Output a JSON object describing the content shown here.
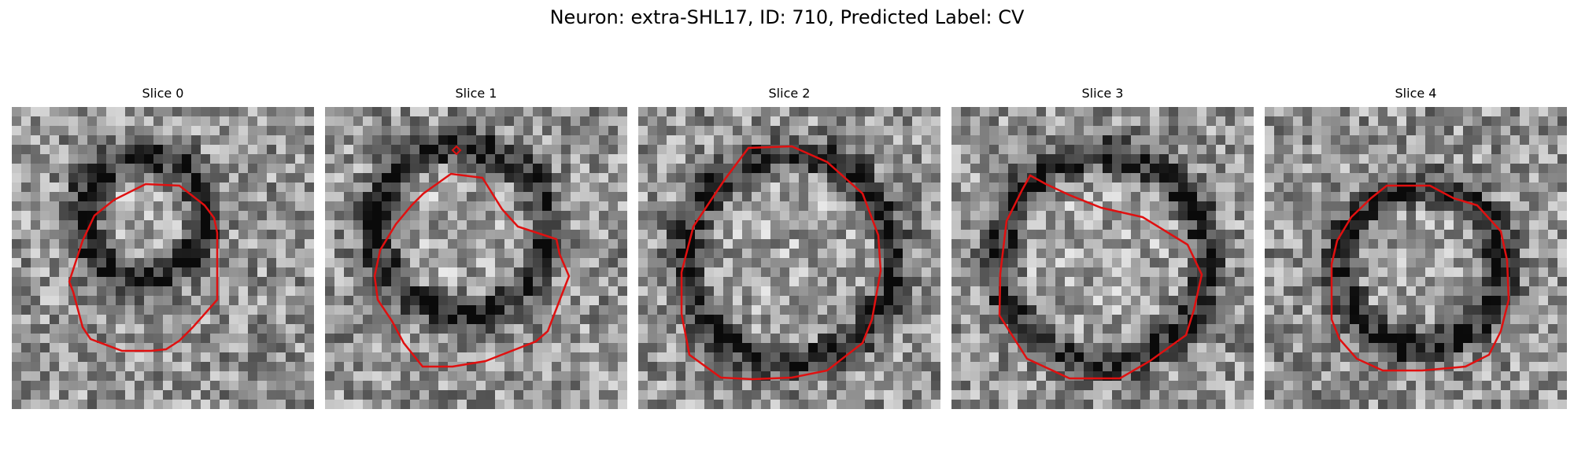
{
  "figure": {
    "title": "Neuron: extra-SHL17, ID: 710, Predicted Label: CV",
    "outline_color": "#e01010",
    "slices": [
      {
        "label": "Slice 0"
      },
      {
        "label": "Slice 1"
      },
      {
        "label": "Slice 2"
      },
      {
        "label": "Slice 3"
      },
      {
        "label": "Slice 4"
      }
    ]
  }
}
